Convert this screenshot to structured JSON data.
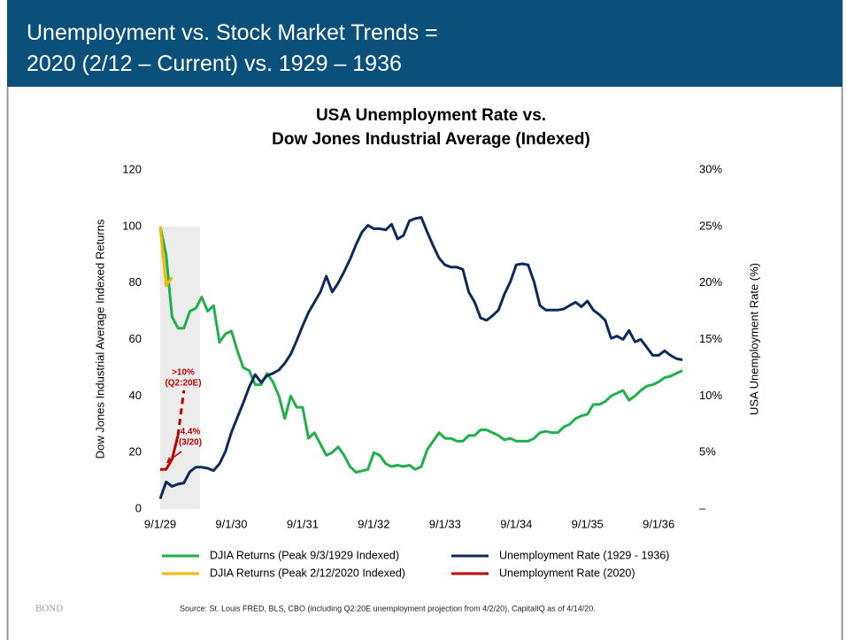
{
  "header": {
    "title": [
      "Unemployment vs. Stock Market Trends =",
      "2020 (2/12 – Current) vs. 1929 – 1936"
    ]
  },
  "footer": {
    "logo": "BOND",
    "source": "Source: St. Louis FRED, BLS, CBO (including Q2:20E unemployment projection from 4/2/20), CapitalIQ as of 4/14/20."
  },
  "chart_data": {
    "type": "line",
    "title": [
      "USA Unemployment Rate vs.",
      "Dow Jones Industrial Average (Indexed)"
    ],
    "y_label": "Dow Jones Industrial Average Indexed Returns",
    "y2_label": "USA Unemployment Rate (%)",
    "ylim": [
      0,
      120
    ],
    "yticks": [
      0,
      20,
      40,
      60,
      80,
      100,
      120
    ],
    "y2lim": [
      0,
      30
    ],
    "y2ticks": [
      {
        "value": 0,
        "label": "–"
      },
      {
        "value": 5,
        "label": "5%"
      },
      {
        "value": 10,
        "label": "10%"
      },
      {
        "value": 15,
        "label": "15%"
      },
      {
        "value": 20,
        "label": "20%"
      },
      {
        "value": 25,
        "label": "25%"
      },
      {
        "value": 30,
        "label": "30%"
      }
    ],
    "grid": false,
    "categories": [
      "9/1/29",
      null,
      null,
      null,
      null,
      null,
      null,
      null,
      null,
      null,
      null,
      null,
      "9/1/30",
      null,
      null,
      null,
      null,
      null,
      null,
      null,
      null,
      null,
      null,
      null,
      "9/1/31",
      null,
      null,
      null,
      null,
      null,
      null,
      null,
      null,
      null,
      null,
      null,
      "9/1/32",
      null,
      null,
      null,
      null,
      null,
      null,
      null,
      null,
      null,
      null,
      null,
      "9/1/33",
      null,
      null,
      null,
      null,
      null,
      null,
      null,
      null,
      null,
      null,
      null,
      "9/1/34",
      null,
      null,
      null,
      null,
      null,
      null,
      null,
      null,
      null,
      null,
      null,
      "9/1/35",
      null,
      null,
      null,
      null,
      null,
      null,
      null,
      null,
      null,
      null,
      null,
      "9/1/36",
      null,
      null,
      null,
      null
    ],
    "series": [
      {
        "name": "DJIA Returns (Peak 9/3/1929 Indexed)",
        "color": "#1fb04b",
        "axis": "y",
        "values": [
          100,
          90,
          68,
          64,
          64,
          70,
          71,
          75,
          70,
          72,
          59,
          62,
          63,
          56,
          50,
          49,
          44,
          44,
          48,
          45,
          40,
          32,
          40,
          36,
          36,
          25,
          27,
          23,
          19,
          20,
          22,
          19,
          15,
          13,
          13.5,
          14,
          20,
          19,
          16,
          15,
          15.5,
          15,
          15.5,
          14,
          15,
          21,
          24,
          27,
          25,
          25,
          24,
          24,
          26,
          26,
          28,
          28,
          27,
          26,
          24.5,
          25,
          24,
          24,
          24,
          25,
          27,
          27.5,
          27,
          27,
          29,
          30,
          32,
          33,
          33.5,
          37,
          37,
          38,
          40,
          41,
          42,
          38.5,
          40,
          42,
          43.5,
          44,
          45,
          46.5,
          47,
          48,
          49
        ]
      },
      {
        "name": "Unemployment Rate (1929 - 1936)",
        "color": "#0c2a5a",
        "axis": "y2",
        "values": [
          0.9,
          2.4,
          2.0,
          2.2,
          2.3,
          3.3,
          3.7,
          3.7,
          3.6,
          3.4,
          4.0,
          5.1,
          6.8,
          8.1,
          9.4,
          10.8,
          11.9,
          11.2,
          11.8,
          12.0,
          12.3,
          12.9,
          13.7,
          14.9,
          16.2,
          17.4,
          18.3,
          19.2,
          20.6,
          19.2,
          20.0,
          21.0,
          22.1,
          23.4,
          24.5,
          25.1,
          24.8,
          24.8,
          24.7,
          25.2,
          23.9,
          24.2,
          25.5,
          25.7,
          25.8,
          24.5,
          23.3,
          22.2,
          21.6,
          21.4,
          21.4,
          21.2,
          19.2,
          18.3,
          16.9,
          16.7,
          17.1,
          17.6,
          19.0,
          20.1,
          21.6,
          21.7,
          21.6,
          20.1,
          18.0,
          17.6,
          17.6,
          17.6,
          17.7,
          18.0,
          18.3,
          17.9,
          18.4,
          17.6,
          17.2,
          16.7,
          15.1,
          15.3,
          15.0,
          15.8,
          14.8,
          15.0,
          14.3,
          13.6,
          13.6,
          14.0,
          13.6,
          13.3,
          13.2
        ]
      },
      {
        "name": "DJIA Returns (Peak 2/12/2020 Indexed)",
        "color": "#f5b800",
        "axis": "y",
        "values": [
          100,
          79,
          82,
          null,
          null,
          null,
          null,
          null,
          null,
          null,
          null,
          null,
          null,
          null,
          null,
          null,
          null,
          null,
          null,
          null,
          null,
          null,
          null,
          null,
          null,
          null,
          null,
          null,
          null,
          null,
          null,
          null,
          null,
          null,
          null,
          null,
          null,
          null,
          null,
          null,
          null,
          null,
          null,
          null,
          null,
          null,
          null,
          null,
          null,
          null,
          null,
          null,
          null,
          null,
          null,
          null,
          null,
          null,
          null,
          null,
          null,
          null,
          null,
          null,
          null,
          null,
          null,
          null,
          null,
          null,
          null,
          null,
          null,
          null,
          null,
          null,
          null,
          null,
          null,
          null,
          null,
          null,
          null,
          null,
          null,
          null,
          null,
          null,
          null
        ]
      },
      {
        "name": "Unemployment Rate (2020)",
        "color": "#c00000",
        "axis": "y2",
        "dash_from": 3,
        "values": [
          3.5,
          3.5,
          4.4,
          6.5,
          10.5,
          null,
          null,
          null,
          null,
          null,
          null,
          null,
          null,
          null,
          null,
          null,
          null,
          null,
          null,
          null,
          null,
          null,
          null,
          null,
          null,
          null,
          null,
          null,
          null,
          null,
          null,
          null,
          null,
          null,
          null,
          null,
          null,
          null,
          null,
          null,
          null,
          null,
          null,
          null,
          null,
          null,
          null,
          null,
          null,
          null,
          null,
          null,
          null,
          null,
          null,
          null,
          null,
          null,
          null,
          null,
          null,
          null,
          null,
          null,
          null,
          null,
          null,
          null,
          null,
          null,
          null,
          null,
          null,
          null,
          null,
          null,
          null,
          null,
          null,
          null,
          null,
          null,
          null,
          null,
          null,
          null,
          null,
          null,
          null
        ]
      }
    ],
    "annotations": [
      {
        "text": [
          ">10%",
          "(Q2:20E)"
        ],
        "color": "#c00000"
      },
      {
        "text": [
          "4.4%",
          "(3/20)"
        ],
        "color": "#c00000"
      }
    ]
  }
}
